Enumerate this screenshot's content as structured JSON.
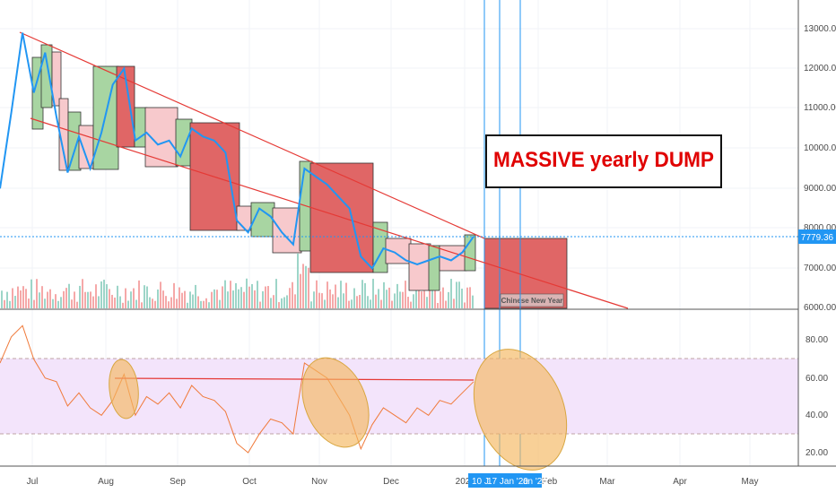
{
  "colors": {
    "price_line": "#2196f3",
    "trend_line": "#e53935",
    "rsi_line": "#f07a3a",
    "rsi_band": "#f3e4fb",
    "box_green": "#a8d5a2",
    "box_pink": "#f7c9cc",
    "box_red": "#e06666",
    "vol_green": "#7cc7b5",
    "vol_red": "#f28b8b",
    "ellipse_fill": "#f4b75f",
    "ellipse_stroke": "#d8a640",
    "vline": "#2196f3"
  },
  "annotation": {
    "text": "MASSIVE yearly DUMP"
  },
  "box_label": {
    "text": "Chinese New Year"
  },
  "price_axis": {
    "labels": [
      "13000.00",
      "12000.00",
      "11000.00",
      "10000.00",
      "9000.00",
      "8000.00",
      "7000.00",
      "6000.00"
    ]
  },
  "last_price": {
    "text": "7779.36",
    "value": 7779.36
  },
  "rsi_axis": {
    "labels": [
      "80.00",
      "60.00",
      "40.00",
      "20.00"
    ]
  },
  "time_axis": {
    "labels": [
      "Jul",
      "Aug",
      "Sep",
      "Oct",
      "Nov",
      "Dec",
      "202",
      "Feb",
      "Mar",
      "Apr",
      "May"
    ]
  },
  "date_tags": [
    "10 J",
    "17 Jan '20",
    "an '20"
  ],
  "chart_data": {
    "type": "line",
    "price": {
      "x": [
        "Jun 17",
        "Jun 22",
        "Jun 26",
        "Jul 1",
        "Jul 6",
        "Jul 11",
        "Jul 16",
        "Jul 21",
        "Jul 26",
        "Jul 31",
        "Aug 5",
        "Aug 10",
        "Aug 15",
        "Aug 20",
        "Aug 25",
        "Aug 30",
        "Sep 4",
        "Sep 9",
        "Sep 14",
        "Sep 19",
        "Sep 24",
        "Sep 29",
        "Oct 4",
        "Oct 9",
        "Oct 14",
        "Oct 19",
        "Oct 24",
        "Oct 26",
        "Oct 31",
        "Nov 5",
        "Nov 10",
        "Nov 15",
        "Nov 20",
        "Nov 25",
        "Nov 30",
        "Dec 5",
        "Dec 10",
        "Dec 15",
        "Dec 20",
        "Dec 25",
        "Dec 30",
        "Jan 4",
        "Jan 9"
      ],
      "values": [
        9000,
        10900,
        12900,
        11400,
        12400,
        10800,
        9400,
        10300,
        9500,
        10400,
        11600,
        12000,
        10200,
        10400,
        10100,
        10200,
        9800,
        10500,
        10300,
        10200,
        9900,
        8200,
        7900,
        8500,
        8300,
        7900,
        7600,
        9500,
        9300,
        9100,
        8800,
        8500,
        7300,
        7000,
        7500,
        7400,
        7200,
        7100,
        7200,
        7300,
        7200,
        7400,
        7800
      ],
      "ylim": [
        6000,
        13500
      ],
      "ticks": [
        6000,
        7000,
        8000,
        9000,
        10000,
        11000,
        12000,
        13000
      ]
    },
    "rsi": {
      "x": [
        "Jun 17",
        "Jun 22",
        "Jun 26",
        "Jul 1",
        "Jul 6",
        "Jul 11",
        "Jul 16",
        "Jul 21",
        "Jul 26",
        "Jul 31",
        "Aug 5",
        "Aug 10",
        "Aug 15",
        "Aug 20",
        "Aug 25",
        "Aug 30",
        "Sep 4",
        "Sep 9",
        "Sep 14",
        "Sep 19",
        "Sep 24",
        "Sep 29",
        "Oct 4",
        "Oct 9",
        "Oct 14",
        "Oct 19",
        "Oct 24",
        "Oct 26",
        "Oct 31",
        "Nov 5",
        "Nov 10",
        "Nov 15",
        "Nov 20",
        "Nov 25",
        "Nov 30",
        "Dec 5",
        "Dec 10",
        "Dec 15",
        "Dec 20",
        "Dec 25",
        "Dec 30",
        "Jan 4",
        "Jan 9"
      ],
      "values": [
        68,
        82,
        88,
        70,
        60,
        58,
        45,
        52,
        44,
        40,
        48,
        62,
        40,
        50,
        46,
        52,
        44,
        56,
        50,
        48,
        42,
        25,
        20,
        30,
        38,
        36,
        30,
        68,
        64,
        60,
        50,
        40,
        22,
        35,
        44,
        40,
        36,
        44,
        40,
        48,
        46,
        52,
        58
      ],
      "ylim": [
        15,
        92
      ],
      "ticks": [
        20,
        40,
        60,
        80
      ],
      "band": [
        30,
        70
      ]
    }
  }
}
